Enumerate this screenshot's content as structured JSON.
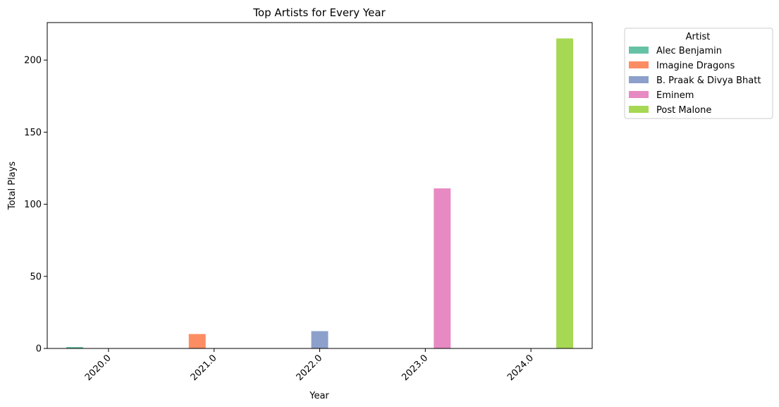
{
  "chart_data": {
    "type": "bar",
    "title": "Top Artists for Every Year",
    "xlabel": "Year",
    "ylabel": "Total Plays",
    "categories": [
      "2020.0",
      "2021.0",
      "2022.0",
      "2023.0",
      "2024.0"
    ],
    "ylim": [
      0,
      226
    ],
    "yticks": [
      0,
      50,
      100,
      150,
      200
    ],
    "grid": false,
    "legend": {
      "title": "Artist",
      "placement": "outside-top-right"
    },
    "series": [
      {
        "name": "Alec Benjamin",
        "color": "#66c2a5",
        "values": [
          1,
          0,
          0,
          0,
          0
        ]
      },
      {
        "name": "Imagine Dragons",
        "color": "#fc8d62",
        "values": [
          0,
          10,
          0,
          0,
          0
        ]
      },
      {
        "name": "B. Praak & Divya Bhatt",
        "color": "#8da0cb",
        "values": [
          0,
          0,
          12,
          0,
          0
        ]
      },
      {
        "name": "Eminem",
        "color": "#e78ac3",
        "values": [
          0,
          0,
          0,
          111,
          0
        ]
      },
      {
        "name": "Post Malone",
        "color": "#a6d854",
        "values": [
          0,
          0,
          0,
          0,
          215
        ]
      }
    ]
  }
}
